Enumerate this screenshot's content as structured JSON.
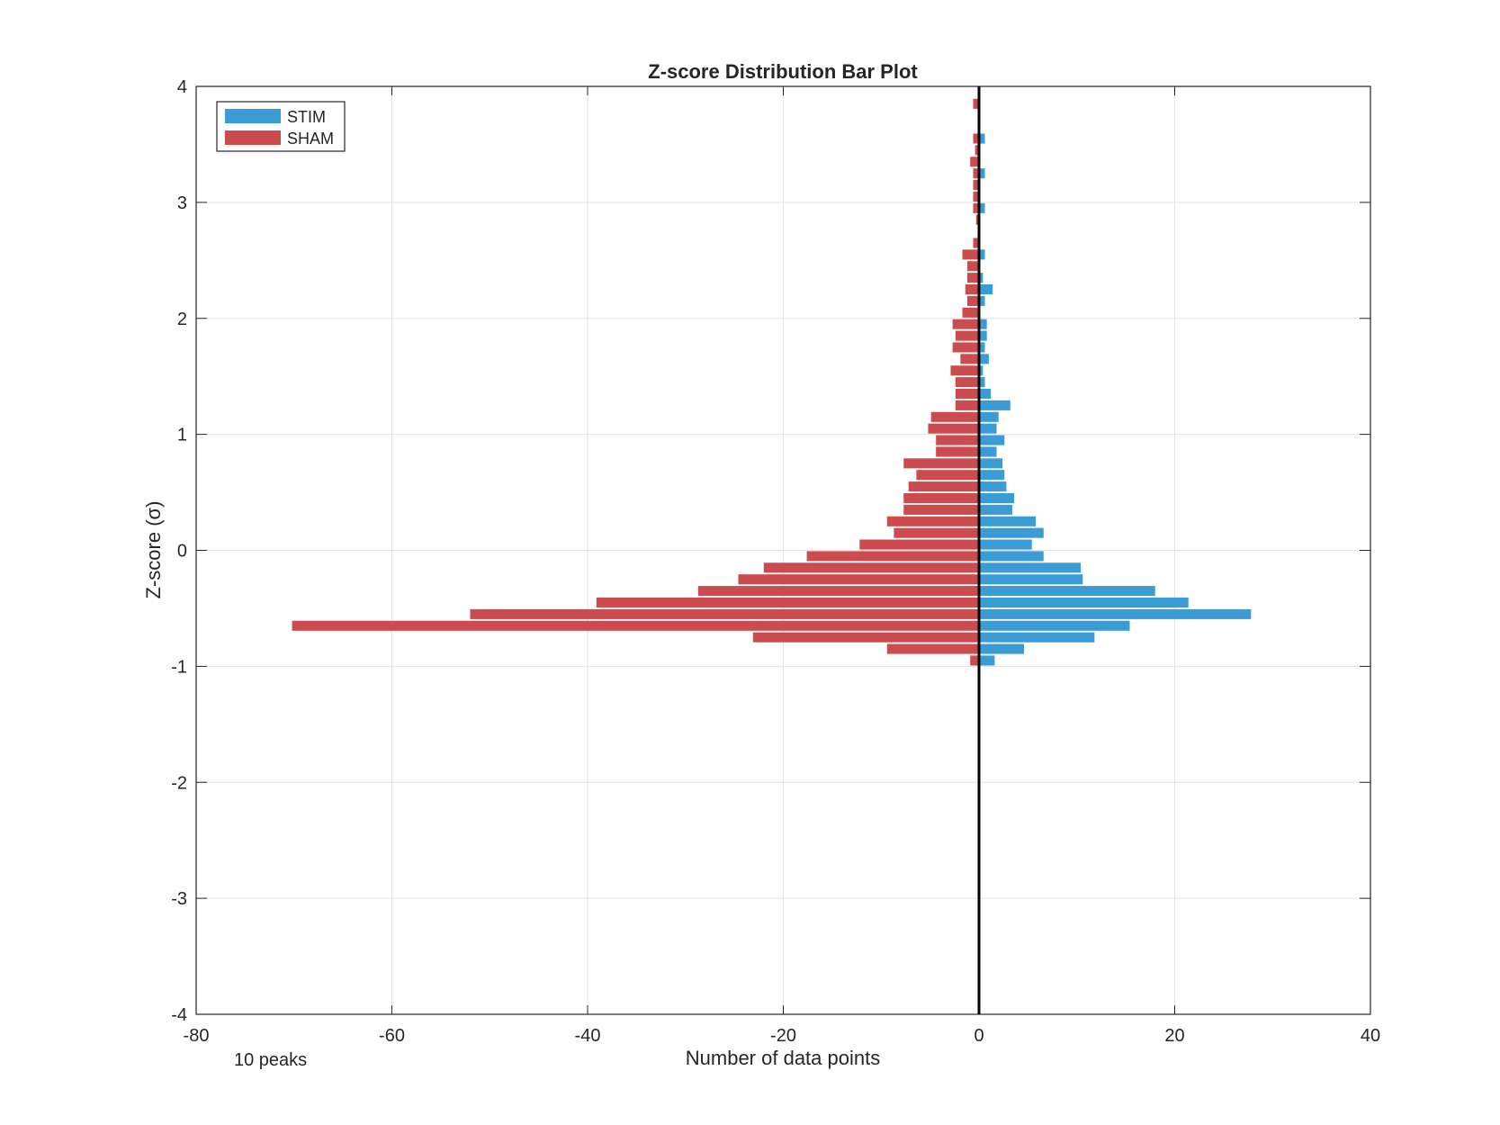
{
  "chart_data": {
    "type": "bar",
    "orientation": "horizontal",
    "title": "Z-score Distribution Bar Plot",
    "xlabel": "Number of data points",
    "ylabel": "Z-score (σ)",
    "xlim": [
      -80,
      40
    ],
    "ylim": [
      -4,
      4
    ],
    "xticks": [
      "-80",
      "-60",
      "-40",
      "-20",
      "0",
      "20",
      "40"
    ],
    "yticks": [
      "4",
      "3",
      "2",
      "1",
      "0",
      "-1",
      "-2",
      "-3",
      "-4"
    ],
    "grid": true,
    "legend_position": "top-left",
    "annotation": "10 peaks",
    "zero_line": 0,
    "categories": [
      3.85,
      3.75,
      3.55,
      3.45,
      3.35,
      3.25,
      3.15,
      3.05,
      2.95,
      2.85,
      2.65,
      2.55,
      2.45,
      2.35,
      2.25,
      2.15,
      2.05,
      1.95,
      1.85,
      1.75,
      1.65,
      1.55,
      1.45,
      1.35,
      1.25,
      1.15,
      1.05,
      0.95,
      0.85,
      0.75,
      0.65,
      0.55,
      0.45,
      0.35,
      0.25,
      0.15,
      0.05,
      -0.05,
      -0.15,
      -0.25,
      -0.35,
      -0.45,
      -0.55,
      -0.65,
      -0.75,
      -0.85,
      -0.95
    ],
    "series": [
      {
        "name": "STIM",
        "color": "#3b9bd4",
        "values": [
          0,
          0,
          0.6,
          0,
          0,
          0.6,
          0,
          0,
          0.6,
          0,
          0,
          0.6,
          0,
          0.4,
          1.4,
          0.6,
          0,
          0.8,
          0.8,
          0.6,
          1.0,
          0.4,
          0.6,
          1.2,
          3.2,
          2.0,
          1.8,
          2.6,
          1.8,
          2.4,
          2.6,
          2.8,
          3.6,
          3.4,
          5.8,
          6.6,
          5.4,
          6.6,
          10.4,
          10.6,
          18.0,
          21.4,
          27.8,
          15.4,
          11.8,
          4.6,
          1.6
        ]
      },
      {
        "name": "SHAM",
        "color": "#cc4b4f",
        "values": [
          -0.6,
          -0.1,
          -0.6,
          -0.4,
          -0.9,
          -0.6,
          -0.6,
          -0.6,
          -0.6,
          -0.3,
          -0.6,
          -1.7,
          -1.2,
          -1.2,
          -1.4,
          -1.2,
          -1.7,
          -2.7,
          -2.4,
          -2.7,
          -1.9,
          -2.9,
          -2.4,
          -2.4,
          -2.4,
          -4.9,
          -5.2,
          -4.4,
          -4.4,
          -7.7,
          -6.4,
          -7.2,
          -7.7,
          -7.7,
          -9.4,
          -8.7,
          -12.2,
          -17.6,
          -22.0,
          -24.6,
          -28.7,
          -39.1,
          -52.0,
          -70.2,
          -23.1,
          -9.4,
          -0.9
        ]
      }
    ]
  }
}
